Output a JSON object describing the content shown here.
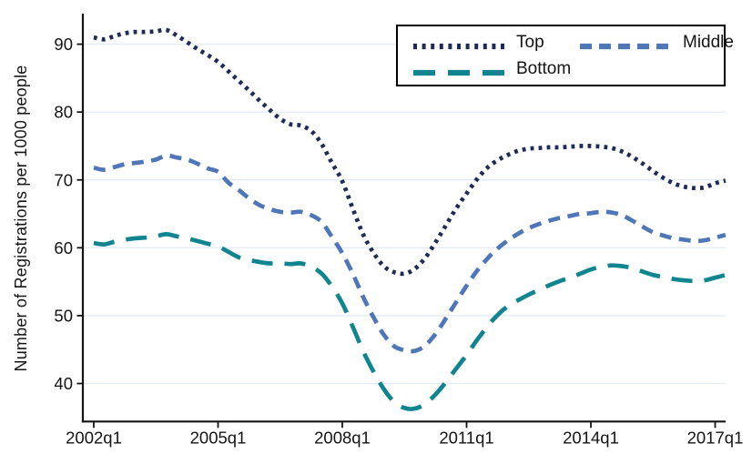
{
  "figure": {
    "background": "#ffffff"
  },
  "chart_data": {
    "type": "line",
    "title": "",
    "xlabel": "",
    "ylabel": "Number of Registrations per 1000 people",
    "grid": "horizontal",
    "grid_color": "#e4ecf4",
    "axis_color": "#141414",
    "legend_position": "top-right-inside",
    "ylim": [
      34.4,
      94.5
    ],
    "y_ticks": [
      40,
      50,
      60,
      70,
      80,
      90
    ],
    "x_tick_labels": [
      "2002q1",
      "2005q1",
      "2008q1",
      "2011q1",
      "2014q1",
      "2017q1"
    ],
    "x_tick_quarter_index": [
      0,
      12,
      24,
      36,
      48,
      60
    ],
    "quarters": [
      "2002q1",
      "2002q2",
      "2002q3",
      "2002q4",
      "2003q1",
      "2003q2",
      "2003q3",
      "2003q4",
      "2004q1",
      "2004q2",
      "2004q3",
      "2004q4",
      "2005q1",
      "2005q2",
      "2005q3",
      "2005q4",
      "2006q1",
      "2006q2",
      "2006q3",
      "2006q4",
      "2007q1",
      "2007q2",
      "2007q3",
      "2007q4",
      "2008q1",
      "2008q2",
      "2008q3",
      "2008q4",
      "2009q1",
      "2009q2",
      "2009q3",
      "2009q4",
      "2010q1",
      "2010q2",
      "2010q3",
      "2010q4",
      "2011q1",
      "2011q2",
      "2011q3",
      "2011q4",
      "2012q1",
      "2012q2",
      "2012q3",
      "2012q4",
      "2013q1",
      "2013q2",
      "2013q3",
      "2013q4",
      "2014q1",
      "2014q2",
      "2014q3",
      "2014q4",
      "2015q1",
      "2015q2",
      "2015q3",
      "2015q4",
      "2016q1",
      "2016q2",
      "2016q3",
      "2016q4",
      "2017q1",
      "2017q2"
    ],
    "series": [
      {
        "name": "Top",
        "color": "#1f2b54",
        "dash": "dot",
        "values": [
          91.0,
          90.7,
          91.2,
          91.6,
          91.8,
          91.8,
          91.9,
          92.1,
          91.3,
          90.3,
          89.3,
          88.4,
          87.4,
          86.0,
          84.6,
          83.2,
          81.7,
          80.3,
          79.0,
          78.2,
          78.0,
          77.2,
          75.3,
          72.5,
          69.8,
          65.8,
          62.0,
          59.3,
          57.3,
          56.4,
          56.2,
          56.9,
          58.5,
          60.8,
          63.3,
          65.8,
          68.0,
          70.1,
          71.8,
          72.9,
          73.7,
          74.3,
          74.6,
          74.7,
          74.8,
          74.8,
          74.9,
          75.0,
          75.0,
          74.9,
          74.7,
          74.2,
          73.4,
          72.4,
          71.3,
          70.3,
          69.5,
          69.0,
          68.8,
          68.9,
          69.5,
          69.9
        ]
      },
      {
        "name": "Middle",
        "color": "#4f77b8",
        "dash": "medium-dash",
        "values": [
          71.8,
          71.5,
          71.9,
          72.3,
          72.5,
          72.7,
          73.0,
          73.6,
          73.3,
          73.0,
          72.4,
          71.7,
          71.2,
          69.6,
          68.5,
          67.3,
          66.3,
          65.7,
          65.3,
          65.2,
          65.3,
          64.8,
          63.8,
          61.6,
          59.2,
          56.2,
          52.8,
          49.8,
          47.2,
          45.5,
          44.9,
          44.8,
          45.6,
          47.3,
          49.6,
          52.0,
          54.4,
          56.6,
          58.4,
          59.9,
          61.1,
          62.1,
          62.9,
          63.5,
          64.0,
          64.4,
          64.7,
          65.0,
          65.1,
          65.3,
          65.2,
          64.8,
          64.0,
          63.1,
          62.3,
          61.8,
          61.4,
          61.2,
          61.0,
          61.1,
          61.5,
          61.9
        ]
      },
      {
        "name": "Bottom",
        "color": "#11858f",
        "dash": "long-dash",
        "values": [
          60.7,
          60.5,
          60.9,
          61.2,
          61.4,
          61.5,
          61.7,
          62.0,
          61.7,
          61.4,
          61.0,
          60.6,
          60.2,
          59.4,
          58.6,
          58.2,
          57.9,
          57.7,
          57.7,
          57.6,
          57.7,
          57.2,
          56.2,
          54.3,
          51.8,
          48.4,
          44.8,
          41.8,
          39.2,
          37.3,
          36.4,
          36.3,
          37.0,
          38.4,
          40.2,
          42.2,
          44.2,
          46.4,
          48.4,
          50.1,
          51.4,
          52.3,
          53.1,
          53.8,
          54.5,
          55.1,
          55.6,
          56.2,
          56.8,
          57.2,
          57.4,
          57.3,
          57.0,
          56.5,
          56.0,
          55.7,
          55.4,
          55.2,
          55.1,
          55.2,
          55.6,
          56.0
        ]
      }
    ]
  }
}
